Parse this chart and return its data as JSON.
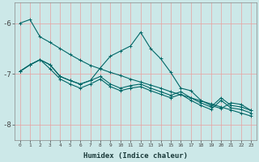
{
  "xlabel": "Humidex (Indice chaleur)",
  "bg_color": "#cce8e8",
  "grid_color": "#e8a0a0",
  "line_color": "#006666",
  "xlim": [
    -0.5,
    23.5
  ],
  "ylim": [
    -8.3,
    -5.6
  ],
  "yticks": [
    -8,
    -7,
    -6
  ],
  "xticks": [
    0,
    1,
    2,
    3,
    4,
    5,
    6,
    7,
    8,
    9,
    10,
    11,
    12,
    13,
    14,
    15,
    16,
    17,
    18,
    19,
    20,
    21,
    22,
    23
  ],
  "s1_y": [
    -6.0,
    -5.93,
    -6.27,
    -6.38,
    -6.5,
    -6.62,
    -6.73,
    -6.83,
    -6.9,
    -6.97,
    -7.03,
    -7.1,
    -7.16,
    -7.22,
    -7.28,
    -7.35,
    -7.41,
    -7.47,
    -7.53,
    -7.59,
    -7.65,
    -7.71,
    -7.77,
    -7.83
  ],
  "s2_y": [
    -6.95,
    -6.82,
    -6.72,
    -6.82,
    -7.05,
    -7.13,
    -7.2,
    -7.13,
    -7.05,
    -7.2,
    -7.28,
    -7.23,
    -7.2,
    -7.28,
    -7.35,
    -7.42,
    -7.35,
    -7.47,
    -7.57,
    -7.65,
    -7.47,
    -7.62,
    -7.65,
    -7.72
  ],
  "s3_y": [
    -6.95,
    -6.82,
    -6.72,
    -6.82,
    -7.05,
    -7.13,
    -7.2,
    -7.13,
    -6.88,
    -6.65,
    -6.55,
    -6.45,
    -6.18,
    -6.5,
    -6.7,
    -6.97,
    -7.28,
    -7.33,
    -7.52,
    -7.62,
    -7.68,
    -7.57,
    -7.6,
    -7.72
  ],
  "s4_y": [
    -6.95,
    -6.82,
    -6.72,
    -6.9,
    -7.1,
    -7.2,
    -7.28,
    -7.2,
    -7.1,
    -7.25,
    -7.33,
    -7.28,
    -7.25,
    -7.33,
    -7.4,
    -7.47,
    -7.4,
    -7.52,
    -7.62,
    -7.7,
    -7.52,
    -7.67,
    -7.7,
    -7.77
  ]
}
